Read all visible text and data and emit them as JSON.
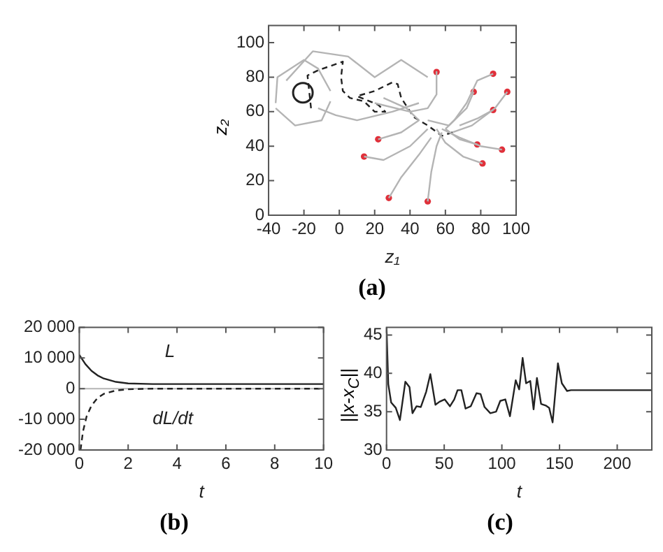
{
  "chart_data": [
    {
      "type": "line",
      "xlabel": "z₁",
      "ylabel": "z₂",
      "annotations": [
        "(a)"
      ],
      "xlim": [
        -40,
        100
      ],
      "xticks": [
        -40,
        -20,
        0,
        20,
        40,
        60,
        80,
        100
      ],
      "ylim": [
        0,
        110
      ],
      "yticks": [
        0,
        20,
        40,
        60,
        80,
        100
      ],
      "grid": false,
      "legend": false,
      "series": [
        {
          "color": "#b4b4b4",
          "x": [
            55,
            55,
            50,
            40,
            20
          ],
          "values": [
            83,
            70,
            62,
            60,
            65
          ]
        },
        {
          "color": "#b4b4b4",
          "x": [
            87,
            78,
            72,
            65,
            60
          ],
          "values": [
            82,
            78,
            65,
            55,
            50
          ]
        },
        {
          "color": "#b4b4b4",
          "x": [
            76,
            72,
            62,
            50
          ],
          "values": [
            71.5,
            62,
            52,
            55
          ]
        },
        {
          "color": "#b4b4b4",
          "x": [
            95,
            88,
            75,
            64
          ],
          "values": [
            71.5,
            62,
            52,
            48
          ]
        },
        {
          "color": "#b4b4b4",
          "x": [
            87,
            78,
            68
          ],
          "values": [
            61,
            56,
            52
          ]
        },
        {
          "color": "#b4b4b4",
          "x": [
            22,
            35,
            45,
            38,
            25
          ],
          "values": [
            44,
            48,
            55,
            62,
            68
          ]
        },
        {
          "color": "#b4b4b4",
          "x": [
            78,
            68,
            60
          ],
          "values": [
            41,
            44,
            50
          ]
        },
        {
          "color": "#b4b4b4",
          "x": [
            92,
            80,
            68,
            58
          ],
          "values": [
            38,
            40,
            45,
            50
          ]
        },
        {
          "color": "#b4b4b4",
          "x": [
            14,
            25,
            40,
            50
          ],
          "values": [
            34,
            32,
            40,
            50
          ]
        },
        {
          "color": "#b4b4b4",
          "x": [
            81,
            70,
            60,
            55
          ],
          "values": [
            30,
            34,
            42,
            50
          ]
        },
        {
          "color": "#b4b4b4",
          "x": [
            28,
            35,
            45,
            52
          ],
          "values": [
            10,
            22,
            35,
            45
          ]
        },
        {
          "color": "#b4b4b4",
          "x": [
            50,
            52,
            55,
            58
          ],
          "values": [
            8,
            25,
            40,
            48
          ]
        },
        {
          "color": "#b4b4b4",
          "x": [
            -36,
            -35,
            -20,
            -12,
            -5
          ],
          "values": [
            65,
            80,
            90,
            85,
            72
          ]
        },
        {
          "color": "#b4b4b4",
          "x": [
            -36,
            -25,
            -10,
            -5
          ],
          "values": [
            62,
            52,
            55,
            66
          ]
        },
        {
          "color": "#b4b4b4",
          "x": [
            -30,
            -15,
            5,
            20,
            35,
            50
          ],
          "values": [
            78,
            95,
            92,
            80,
            90,
            80
          ]
        },
        {
          "color": "#b4b4b4",
          "x": [
            -12,
            -2,
            10,
            30,
            45
          ],
          "values": [
            62,
            58,
            55,
            60,
            65
          ]
        },
        {
          "color": "#222222",
          "line_style": "dashed",
          "x": [
            -16,
            -18,
            -12,
            2,
            1,
            2,
            6,
            14,
            20,
            26,
            22,
            10,
            20,
            30,
            33,
            35,
            42,
            50,
            58,
            64
          ],
          "values": [
            62,
            81,
            84,
            89,
            80,
            72,
            68,
            66,
            60,
            60,
            64,
            69,
            72,
            77,
            76,
            68,
            57,
            52,
            46,
            48
          ]
        },
        {
          "type": "bubble",
          "color": "#222222",
          "x": [
            -20.6
          ],
          "values": [
            71
          ],
          "sizes": [
            1
          ]
        },
        {
          "type": "scatter",
          "marker": "circle",
          "color": "#e0303a",
          "x": [
            55,
            87,
            76,
            95,
            87,
            22,
            78,
            92,
            14,
            81,
            28,
            50
          ],
          "values": [
            83,
            82,
            71.5,
            71.5,
            61,
            44,
            41,
            38,
            34,
            30,
            10,
            8
          ]
        }
      ]
    },
    {
      "type": "line",
      "xlabel": "t",
      "annotations": [
        "(b)",
        "L",
        "dL/dt"
      ],
      "xlim": [
        0,
        10
      ],
      "xticks": [
        0,
        2,
        4,
        6,
        8,
        10
      ],
      "ylim": [
        -20000,
        20000
      ],
      "yticks": [
        {
          "value": -20000,
          "label": "-20 000"
        },
        {
          "value": -10000,
          "label": "-10 000"
        },
        0,
        {
          "value": 10000,
          "label": "10 000"
        },
        {
          "value": 20000,
          "label": "20 000"
        }
      ],
      "grid": false,
      "legend": false,
      "ref_lines": [
        {
          "axis": "y",
          "value": 0,
          "color": "#b4b4b4"
        }
      ],
      "series": [
        {
          "color": "#222222",
          "x": [
            0,
            0.25,
            0.5,
            0.75,
            1,
            1.5,
            2,
            3,
            10
          ],
          "values": [
            11000,
            8000,
            5800,
            4300,
            3300,
            2200,
            1700,
            1500,
            1500
          ]
        },
        {
          "color": "#222222",
          "line_style": "dashed",
          "x": [
            0.05,
            0.15,
            0.3,
            0.5,
            0.75,
            1,
            1.5,
            2,
            3,
            10
          ],
          "values": [
            -20000,
            -14000,
            -9000,
            -5500,
            -3000,
            -1700,
            -600,
            -200,
            0,
            0
          ]
        }
      ]
    },
    {
      "type": "line",
      "xlabel": "t",
      "ylabel": "||x-x$_{C}$||",
      "annotations": [
        "(c)"
      ],
      "xlim": [
        0,
        230
      ],
      "xticks": [
        0,
        50,
        100,
        150,
        200
      ],
      "ylim": [
        30,
        46
      ],
      "yticks": [
        30,
        35,
        40,
        45
      ],
      "grid": false,
      "legend": false,
      "series": [
        {
          "color": "#222222",
          "x": [
            0,
            1.5,
            4,
            8,
            11.6,
            16.3,
            19.9,
            22.5,
            26,
            29.7,
            34.4,
            38,
            42.4,
            46,
            50.4,
            55,
            58.7,
            61.6,
            64.9,
            68.5,
            73,
            78,
            81.5,
            85,
            90,
            95,
            98.6,
            103,
            107,
            112,
            115,
            118,
            121,
            124.6,
            127.5,
            130.4,
            134,
            138,
            141,
            144,
            148.6,
            152,
            156.5,
            160,
            230
          ],
          "values": [
            46,
            38.6,
            36.2,
            35.5,
            33.9,
            38.9,
            38.2,
            34.8,
            35.7,
            35.6,
            37.6,
            39.9,
            35.9,
            36.3,
            36.6,
            35.7,
            36.6,
            37.8,
            37.8,
            35.4,
            35.7,
            37.4,
            37.3,
            35.6,
            34.8,
            35,
            36.4,
            36.6,
            34.4,
            39.1,
            37.9,
            42,
            38.7,
            39,
            35.3,
            39.4,
            36,
            35.8,
            35.5,
            33.6,
            41.3,
            38.7,
            37.7,
            37.8,
            37.8
          ]
        }
      ]
    }
  ]
}
